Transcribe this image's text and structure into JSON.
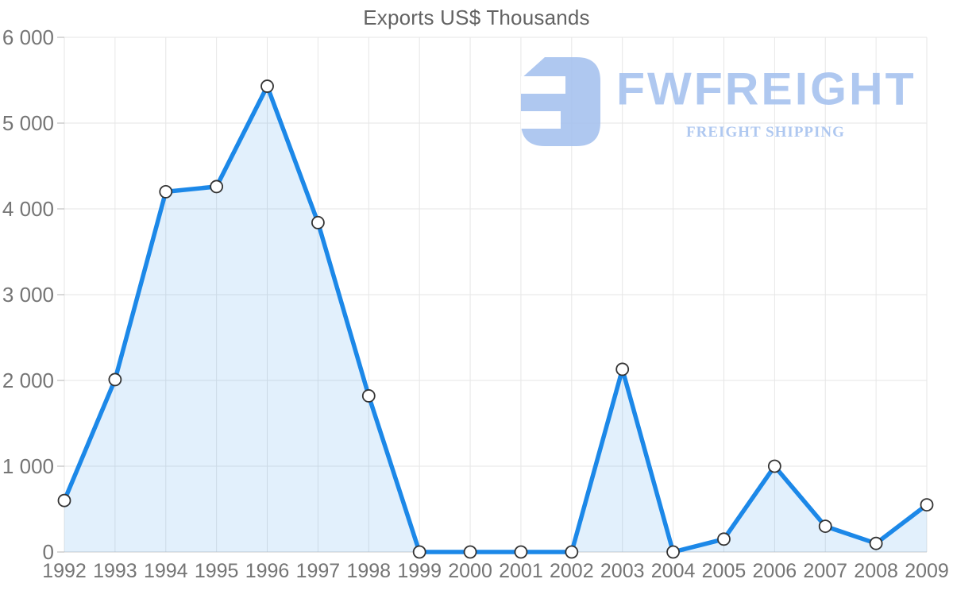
{
  "page": {
    "background": "#ffffff",
    "title_color": "#636363",
    "tick_label_color": "#757575",
    "grid_color": "#e6e6e6",
    "baseline_color": "#cccccc",
    "tick_mark_color": "#b3b3b3"
  },
  "chart_data": {
    "type": "area",
    "title": "Exports US$ Thousands",
    "xlabel": "",
    "ylabel": "",
    "categories": [
      "1992",
      "1993",
      "1994",
      "1995",
      "1996",
      "1997",
      "1998",
      "1999",
      "2000",
      "2001",
      "2002",
      "2003",
      "2004",
      "2005",
      "2006",
      "2007",
      "2008",
      "2009"
    ],
    "values": [
      600,
      2010,
      4200,
      4260,
      5430,
      3840,
      1820,
      0,
      0,
      0,
      0,
      2130,
      0,
      150,
      1000,
      300,
      100,
      550
    ],
    "ylim": [
      0,
      6000
    ],
    "ytick_interval": 1000,
    "ytick_labels": [
      "0",
      "1 000",
      "2 000",
      "3 000",
      "4 000",
      "5 000",
      "6 000"
    ],
    "grid": "both",
    "legend": "none",
    "line_color": "#1c88e8",
    "area_fill_color": "#1c88e8",
    "area_fill_opacity": 0.13,
    "marker_fill": "#ffffff",
    "marker_stroke": "#333333"
  },
  "watermark": {
    "brand": "FWFREIGHT",
    "tagline": "FREIGHT SHIPPING",
    "color": "#a5c1ef",
    "icon": "fwfreight-logo-icon"
  }
}
